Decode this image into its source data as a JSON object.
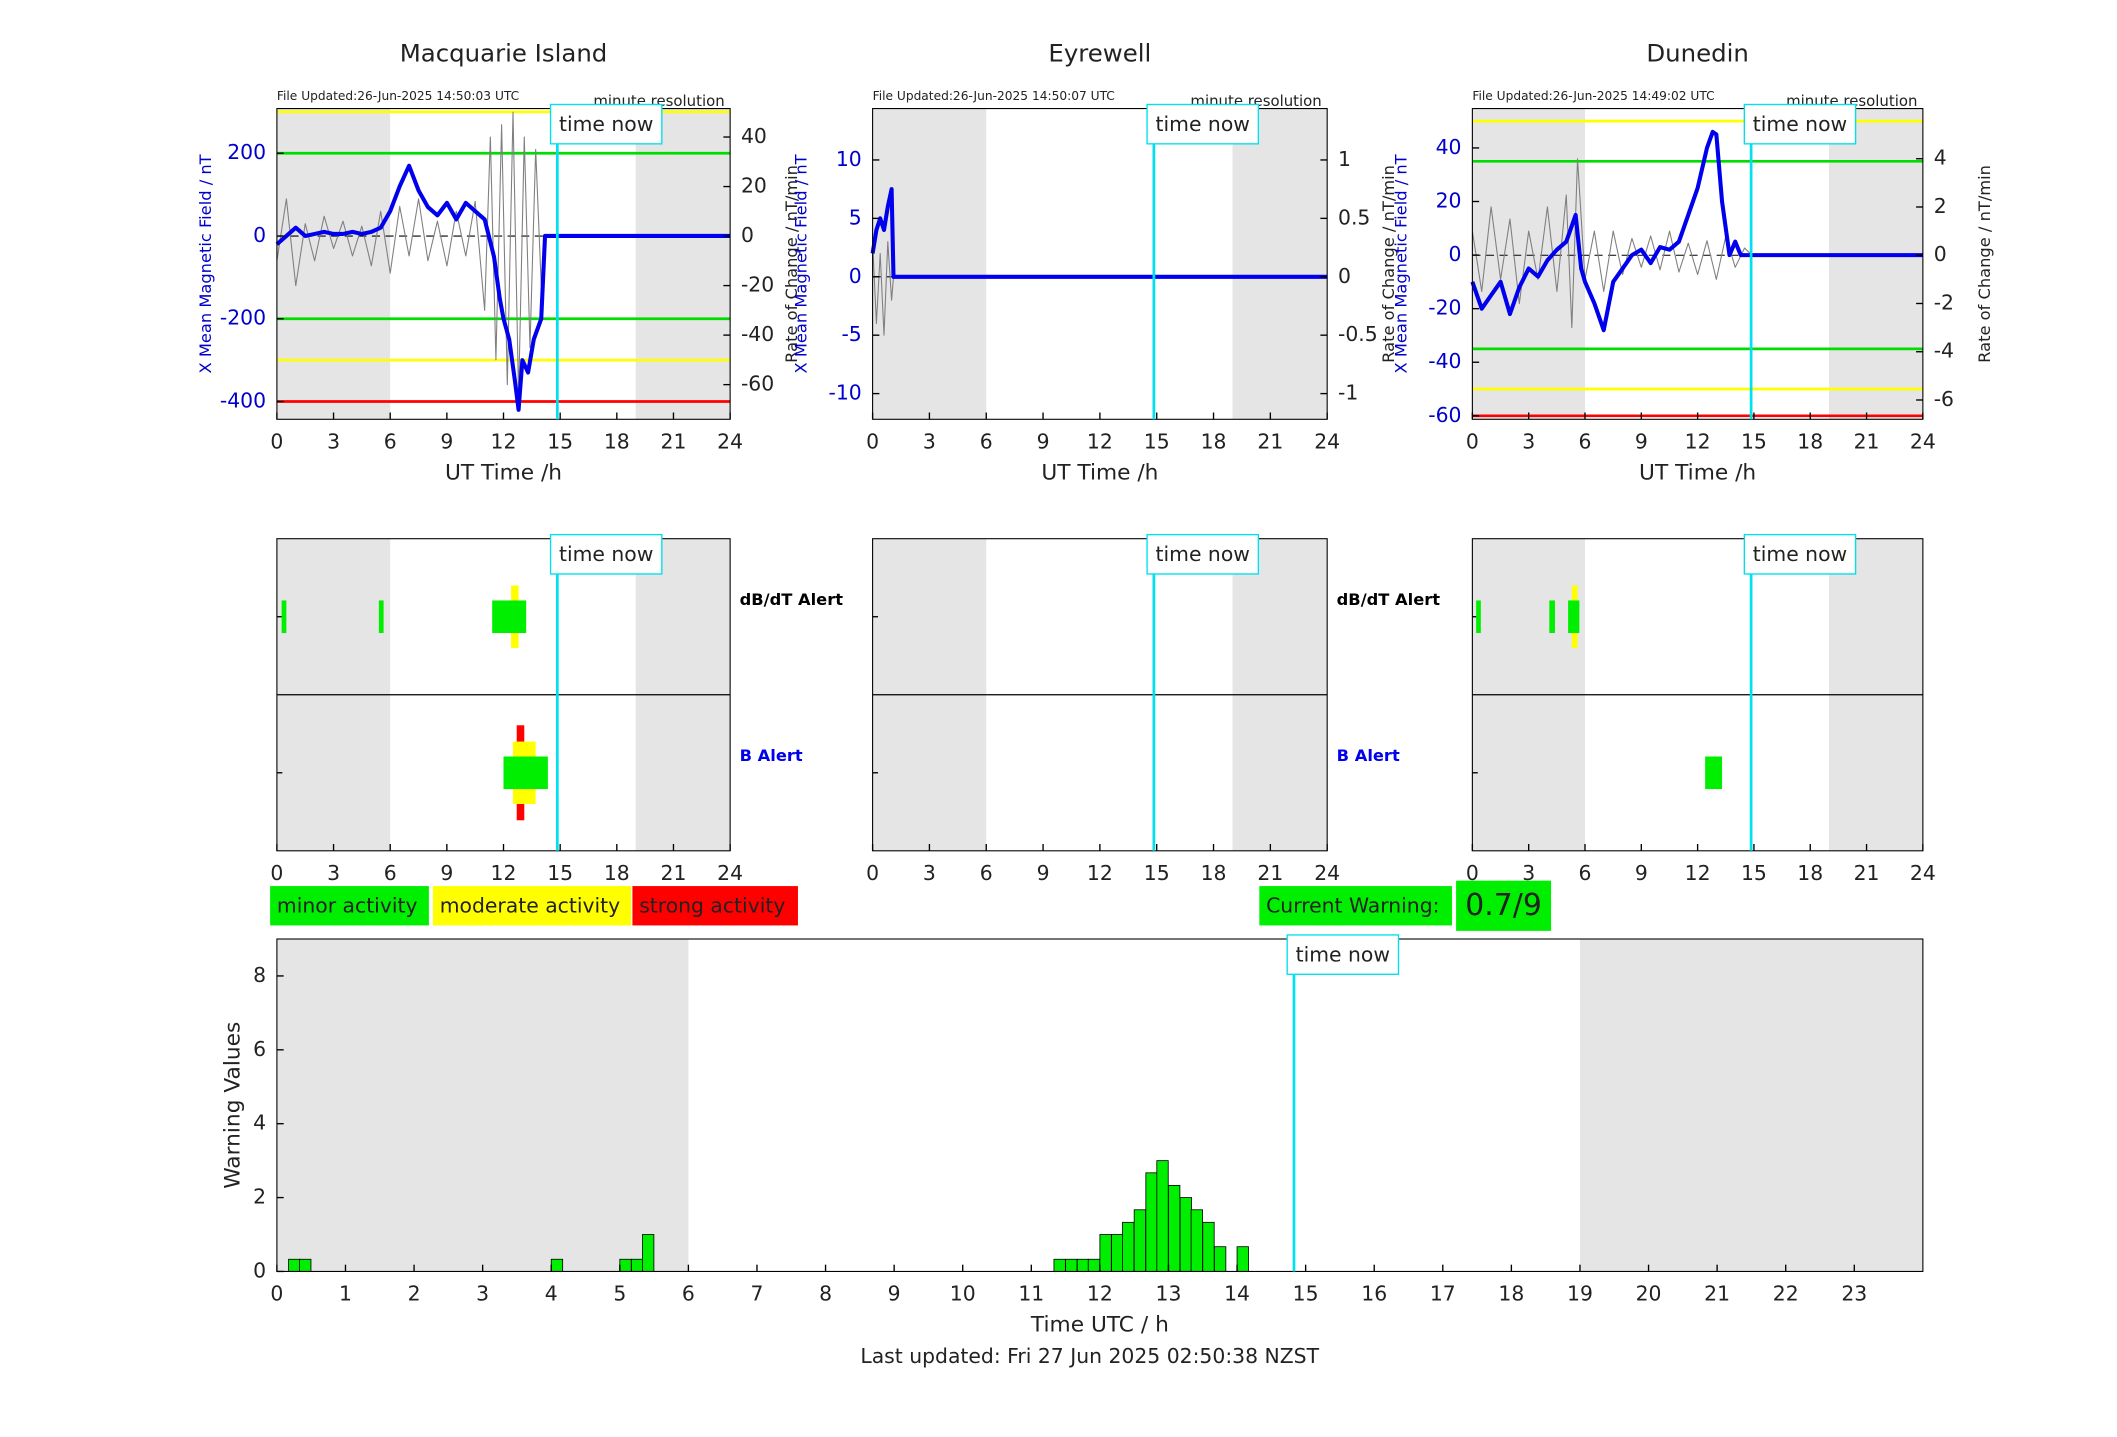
{
  "chart_data": [
    {
      "type": "line",
      "title": "Macquarie Island",
      "file_updated": "File Updated:26-Jun-2025 14:50:03 UTC",
      "resolution": "minute resolution",
      "ylabel": "X Mean Magnetic Field / nT",
      "y2label": "Rate of Change / nT/min",
      "xlabel": "UT Time /h",
      "xlim": [
        0,
        24
      ],
      "xticks": [
        0,
        3,
        6,
        9,
        12,
        15,
        18,
        21,
        24
      ],
      "ylim": [
        -443,
        308
      ],
      "yticks": [
        -400,
        -200,
        0,
        200
      ],
      "y2lim": [
        -74,
        51.5
      ],
      "y2ticks": [
        -60,
        -40,
        -20,
        0,
        20,
        40
      ],
      "shade": [
        [
          0,
          6
        ],
        [
          19,
          24
        ]
      ],
      "now": 14.85,
      "now_label": "time now",
      "thresholds": [
        {
          "value": 300,
          "color": "#ffff00"
        },
        {
          "value": 200,
          "color": "#00dd00"
        },
        {
          "value": -200,
          "color": "#00dd00"
        },
        {
          "value": -300,
          "color": "#ffff00"
        },
        {
          "value": -400,
          "color": "#ff0000"
        }
      ],
      "series": [
        {
          "axis": "y2",
          "color": "#808080",
          "x": [
            0,
            0.5,
            1,
            1.5,
            2,
            2.5,
            3,
            3.5,
            4,
            4.5,
            5,
            5.5,
            6,
            6.5,
            7,
            7.5,
            8,
            8.5,
            9,
            9.5,
            10,
            10.5,
            11,
            11.3,
            11.6,
            11.9,
            12.2,
            12.5,
            12.8,
            13.1,
            13.4,
            13.7,
            14,
            14.2
          ],
          "values": [
            -10,
            15,
            -20,
            5,
            -10,
            8,
            -5,
            6,
            -8,
            4,
            -12,
            10,
            -15,
            12,
            -8,
            15,
            -10,
            6,
            -12,
            10,
            -8,
            14,
            -30,
            40,
            -50,
            45,
            -60,
            50,
            -65,
            40,
            -45,
            35,
            -20,
            0
          ]
        },
        {
          "color": "#0000ee",
          "x": [
            0,
            0.5,
            1,
            1.5,
            2,
            2.5,
            3,
            3.5,
            4,
            4.5,
            5,
            5.5,
            6,
            6.5,
            7,
            7.5,
            8,
            8.5,
            9,
            9.5,
            10,
            10.5,
            11,
            11.5,
            11.8,
            12,
            12.3,
            12.6,
            12.8,
            13,
            13.3,
            13.6,
            14,
            14.2,
            24
          ],
          "values": [
            -20,
            0,
            20,
            0,
            5,
            10,
            5,
            5,
            10,
            5,
            10,
            20,
            60,
            120,
            170,
            110,
            70,
            50,
            80,
            40,
            80,
            60,
            40,
            -50,
            -150,
            -200,
            -250,
            -350,
            -420,
            -300,
            -330,
            -250,
            -200,
            0,
            0
          ]
        }
      ]
    },
    {
      "type": "line",
      "title": "Eyrewell",
      "file_updated": "File Updated:26-Jun-2025 14:50:07 UTC",
      "resolution": "minute resolution",
      "ylabel": "X Mean Magnetic Field / nT",
      "y2label": "Rate of Change / nT/min",
      "xlabel": "UT Time /h",
      "xlim": [
        0,
        24
      ],
      "xticks": [
        0,
        3,
        6,
        9,
        12,
        15,
        18,
        21,
        24
      ],
      "ylim": [
        -12.2,
        14.4
      ],
      "yticks": [
        -10,
        -5,
        0,
        5,
        10
      ],
      "y2lim": [
        -1.22,
        1.44
      ],
      "y2ticks": [
        -1,
        -0.5,
        0,
        0.5,
        1
      ],
      "shade": [
        [
          0,
          6
        ],
        [
          19,
          24
        ]
      ],
      "now": 14.85,
      "now_label": "time now",
      "thresholds": [],
      "series": [
        {
          "axis": "y2",
          "color": "#808080",
          "x": [
            0,
            0.2,
            0.4,
            0.6,
            0.8,
            1,
            1.1
          ],
          "values": [
            0.3,
            -0.4,
            0.2,
            -0.5,
            0.3,
            -0.2,
            0
          ]
        },
        {
          "color": "#0000ee",
          "x": [
            0,
            0.2,
            0.4,
            0.6,
            0.8,
            1,
            1.1,
            24
          ],
          "values": [
            2,
            4,
            5,
            4,
            6,
            7.5,
            0,
            0
          ]
        }
      ]
    },
    {
      "type": "line",
      "title": "Dunedin",
      "file_updated": "File Updated:26-Jun-2025 14:49:02 UTC",
      "resolution": "minute resolution",
      "ylabel": "X Mean Magnetic Field / nT",
      "y2label": "Rate of Change / nT/min",
      "xlabel": "UT Time /h",
      "xlim": [
        0,
        24
      ],
      "xticks": [
        0,
        3,
        6,
        9,
        12,
        15,
        18,
        21,
        24
      ],
      "ylim": [
        -61.3,
        54.7
      ],
      "yticks": [
        -60,
        -40,
        -20,
        0,
        20,
        40
      ],
      "y2lim": [
        -6.8,
        6.08
      ],
      "y2ticks": [
        -6,
        -4,
        -2,
        0,
        2,
        4
      ],
      "shade": [
        [
          0,
          6
        ],
        [
          19,
          24
        ]
      ],
      "now": 14.85,
      "now_label": "time now",
      "thresholds": [
        {
          "value": 50,
          "color": "#ffff00"
        },
        {
          "value": 35,
          "color": "#00dd00"
        },
        {
          "value": -35,
          "color": "#00dd00"
        },
        {
          "value": -50,
          "color": "#ffff00"
        },
        {
          "value": -60,
          "color": "#ff0000"
        }
      ],
      "series": [
        {
          "axis": "y2",
          "color": "#808080",
          "x": [
            0,
            0.5,
            1,
            1.5,
            2,
            2.5,
            3,
            3.5,
            4,
            4.5,
            5,
            5.3,
            5.6,
            6,
            6.5,
            7,
            7.5,
            8,
            8.5,
            9,
            9.5,
            10,
            10.5,
            11,
            11.5,
            12,
            12.5,
            13,
            13.5,
            14,
            14.5,
            14.9
          ],
          "values": [
            1,
            -1.5,
            2,
            -1,
            1.5,
            -2,
            1,
            -1,
            2,
            -1.5,
            2.5,
            -3,
            4,
            -1,
            1,
            -1.5,
            1,
            -0.8,
            0.7,
            -0.5,
            0.8,
            -0.6,
            1,
            -0.7,
            0.5,
            -0.8,
            0.6,
            -1,
            0.8,
            -0.5,
            0.3,
            0
          ]
        },
        {
          "color": "#0000ee",
          "x": [
            0,
            0.5,
            1,
            1.5,
            2,
            2.5,
            3,
            3.5,
            4,
            4.5,
            5,
            5.5,
            5.8,
            6,
            6.5,
            7,
            7.5,
            8,
            8.5,
            9,
            9.5,
            10,
            10.5,
            11,
            11.5,
            12,
            12.5,
            12.8,
            13,
            13.3,
            13.7,
            14,
            14.3,
            15,
            24
          ],
          "values": [
            -10,
            -20,
            -15,
            -10,
            -22,
            -12,
            -5,
            -8,
            -2,
            2,
            5,
            15,
            -5,
            -10,
            -18,
            -28,
            -10,
            -5,
            0,
            2,
            -3,
            3,
            2,
            5,
            15,
            25,
            40,
            46,
            45,
            20,
            0,
            5,
            0,
            0,
            0
          ]
        }
      ]
    },
    {
      "type": "alert",
      "xlim": [
        0,
        24
      ],
      "xticks": [
        0,
        3,
        6,
        9,
        12,
        15,
        18,
        21,
        24
      ],
      "shade": [
        [
          0,
          6
        ],
        [
          19,
          24
        ]
      ],
      "now": 14.85,
      "now_label": "time now",
      "rows": [
        {
          "label": "dB/dT Alert",
          "label_color": "#000000",
          "segments": [
            [
              12.4,
              12.8,
              2
            ],
            [
              0.25,
              0.5,
              1
            ],
            [
              5.4,
              5.65,
              1
            ],
            [
              11.4,
              13.2,
              1
            ]
          ]
        },
        {
          "label": "B Alert",
          "label_color": "#0000ee",
          "segments": [
            [
              12.7,
              13.1,
              3
            ],
            [
              12.5,
              13.7,
              2
            ],
            [
              12,
              14.35,
              1
            ]
          ]
        }
      ]
    },
    {
      "type": "alert",
      "xlim": [
        0,
        24
      ],
      "xticks": [
        0,
        3,
        6,
        9,
        12,
        15,
        18,
        21,
        24
      ],
      "shade": [
        [
          0,
          6
        ],
        [
          19,
          24
        ]
      ],
      "now": 14.85,
      "now_label": "time now",
      "rows": [
        {
          "label": "dB/dT Alert",
          "label_color": "#000000",
          "segments": []
        },
        {
          "label": "B Alert",
          "label_color": "#0000ee",
          "segments": []
        }
      ]
    },
    {
      "type": "alert",
      "xlim": [
        0,
        24
      ],
      "xticks": [
        0,
        3,
        6,
        9,
        12,
        15,
        18,
        21,
        24
      ],
      "shade": [
        [
          0,
          6
        ],
        [
          19,
          24
        ]
      ],
      "now": 14.85,
      "now_label": "time now",
      "rows": [
        {
          "segments": [
            [
              5.3,
              5.6,
              2
            ],
            [
              0.2,
              0.45,
              1
            ],
            [
              4.1,
              4.4,
              1
            ],
            [
              5.1,
              5.7,
              1
            ]
          ]
        },
        {
          "segments": [
            [
              12.4,
              13.3,
              1
            ]
          ]
        }
      ]
    },
    {
      "type": "bar",
      "xlabel": "Time UTC / h",
      "ylabel": "Warning Values",
      "color": "#00ee00",
      "xlim": [
        0,
        24
      ],
      "xticks": [
        0,
        1,
        2,
        3,
        4,
        5,
        6,
        7,
        8,
        9,
        10,
        11,
        12,
        13,
        14,
        15,
        16,
        17,
        18,
        19,
        20,
        21,
        22,
        23
      ],
      "ylim": [
        0,
        9
      ],
      "yticks": [
        0,
        2,
        4,
        6,
        8
      ],
      "shade": [
        [
          0,
          6
        ],
        [
          19,
          24
        ]
      ],
      "now": 14.83,
      "now_label": "time now",
      "x": [
        0.17,
        0.33,
        4,
        5,
        5.17,
        5.33,
        11.33,
        11.5,
        11.67,
        11.83,
        12,
        12.17,
        12.33,
        12.5,
        12.67,
        12.83,
        13,
        13.17,
        13.33,
        13.5,
        13.67,
        14
      ],
      "values": [
        0.33,
        0.33,
        0.33,
        0.33,
        0.33,
        1,
        0.33,
        0.33,
        0.33,
        0.33,
        1,
        1,
        1.33,
        1.67,
        2.67,
        3,
        2.33,
        2,
        1.67,
        1.33,
        0.67,
        0.67
      ]
    }
  ],
  "legend": {
    "items": [
      {
        "label": "minor activity",
        "color": "#00ee00"
      },
      {
        "label": "moderate activity",
        "color": "#ffff00"
      },
      {
        "label": "strong activity",
        "color": "#ff0000"
      }
    ],
    "current_warning_label": "Current Warning:",
    "current_warning": "0.7/9"
  },
  "footer": "Last updated: Fri 27 Jun 2025 02:50:38 NZST"
}
